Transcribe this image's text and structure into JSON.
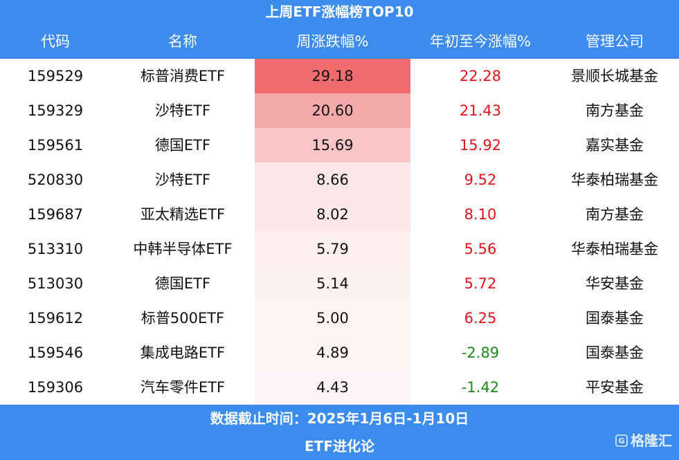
{
  "header": {
    "title": "上周ETF涨幅榜TOP10",
    "columns": [
      "代码",
      "名称",
      "周涨跌幅%",
      "年初至今涨幅%",
      "管理公司"
    ]
  },
  "table": {
    "rows": [
      [
        "159529",
        "标普消费ETF",
        "29.18",
        "22.28",
        "景顺长城基金"
      ],
      [
        "159329",
        "沙特ETF",
        "20.60",
        "21.43",
        "南方基金"
      ],
      [
        "159561",
        "德国ETF",
        "15.69",
        "15.92",
        "嘉实基金"
      ],
      [
        "520830",
        "沙特ETF",
        "8.66",
        "9.52",
        "华泰柏瑞基金"
      ],
      [
        "159687",
        "亚太精选ETF",
        "8.02",
        "8.10",
        "南方基金"
      ],
      [
        "513310",
        "中韩半导体ETF",
        "5.79",
        "5.56",
        "华泰柏瑞基金"
      ],
      [
        "513030",
        "德国ETF",
        "5.14",
        "5.72",
        "华安基金"
      ],
      [
        "159612",
        "标普500ETF",
        "5.00",
        "6.25",
        "国泰基金"
      ],
      [
        "159546",
        "集成电路ETF",
        "4.89",
        "-2.89",
        "国泰基金"
      ],
      [
        "159306",
        "汽车零件ETF",
        "4.43",
        "-1.42",
        "平安基金"
      ]
    ]
  },
  "footer": {
    "note": "数据截止时间：2025年1月6日-1月10日",
    "source": "ETF进化论"
  },
  "watermark": "格隆汇"
}
